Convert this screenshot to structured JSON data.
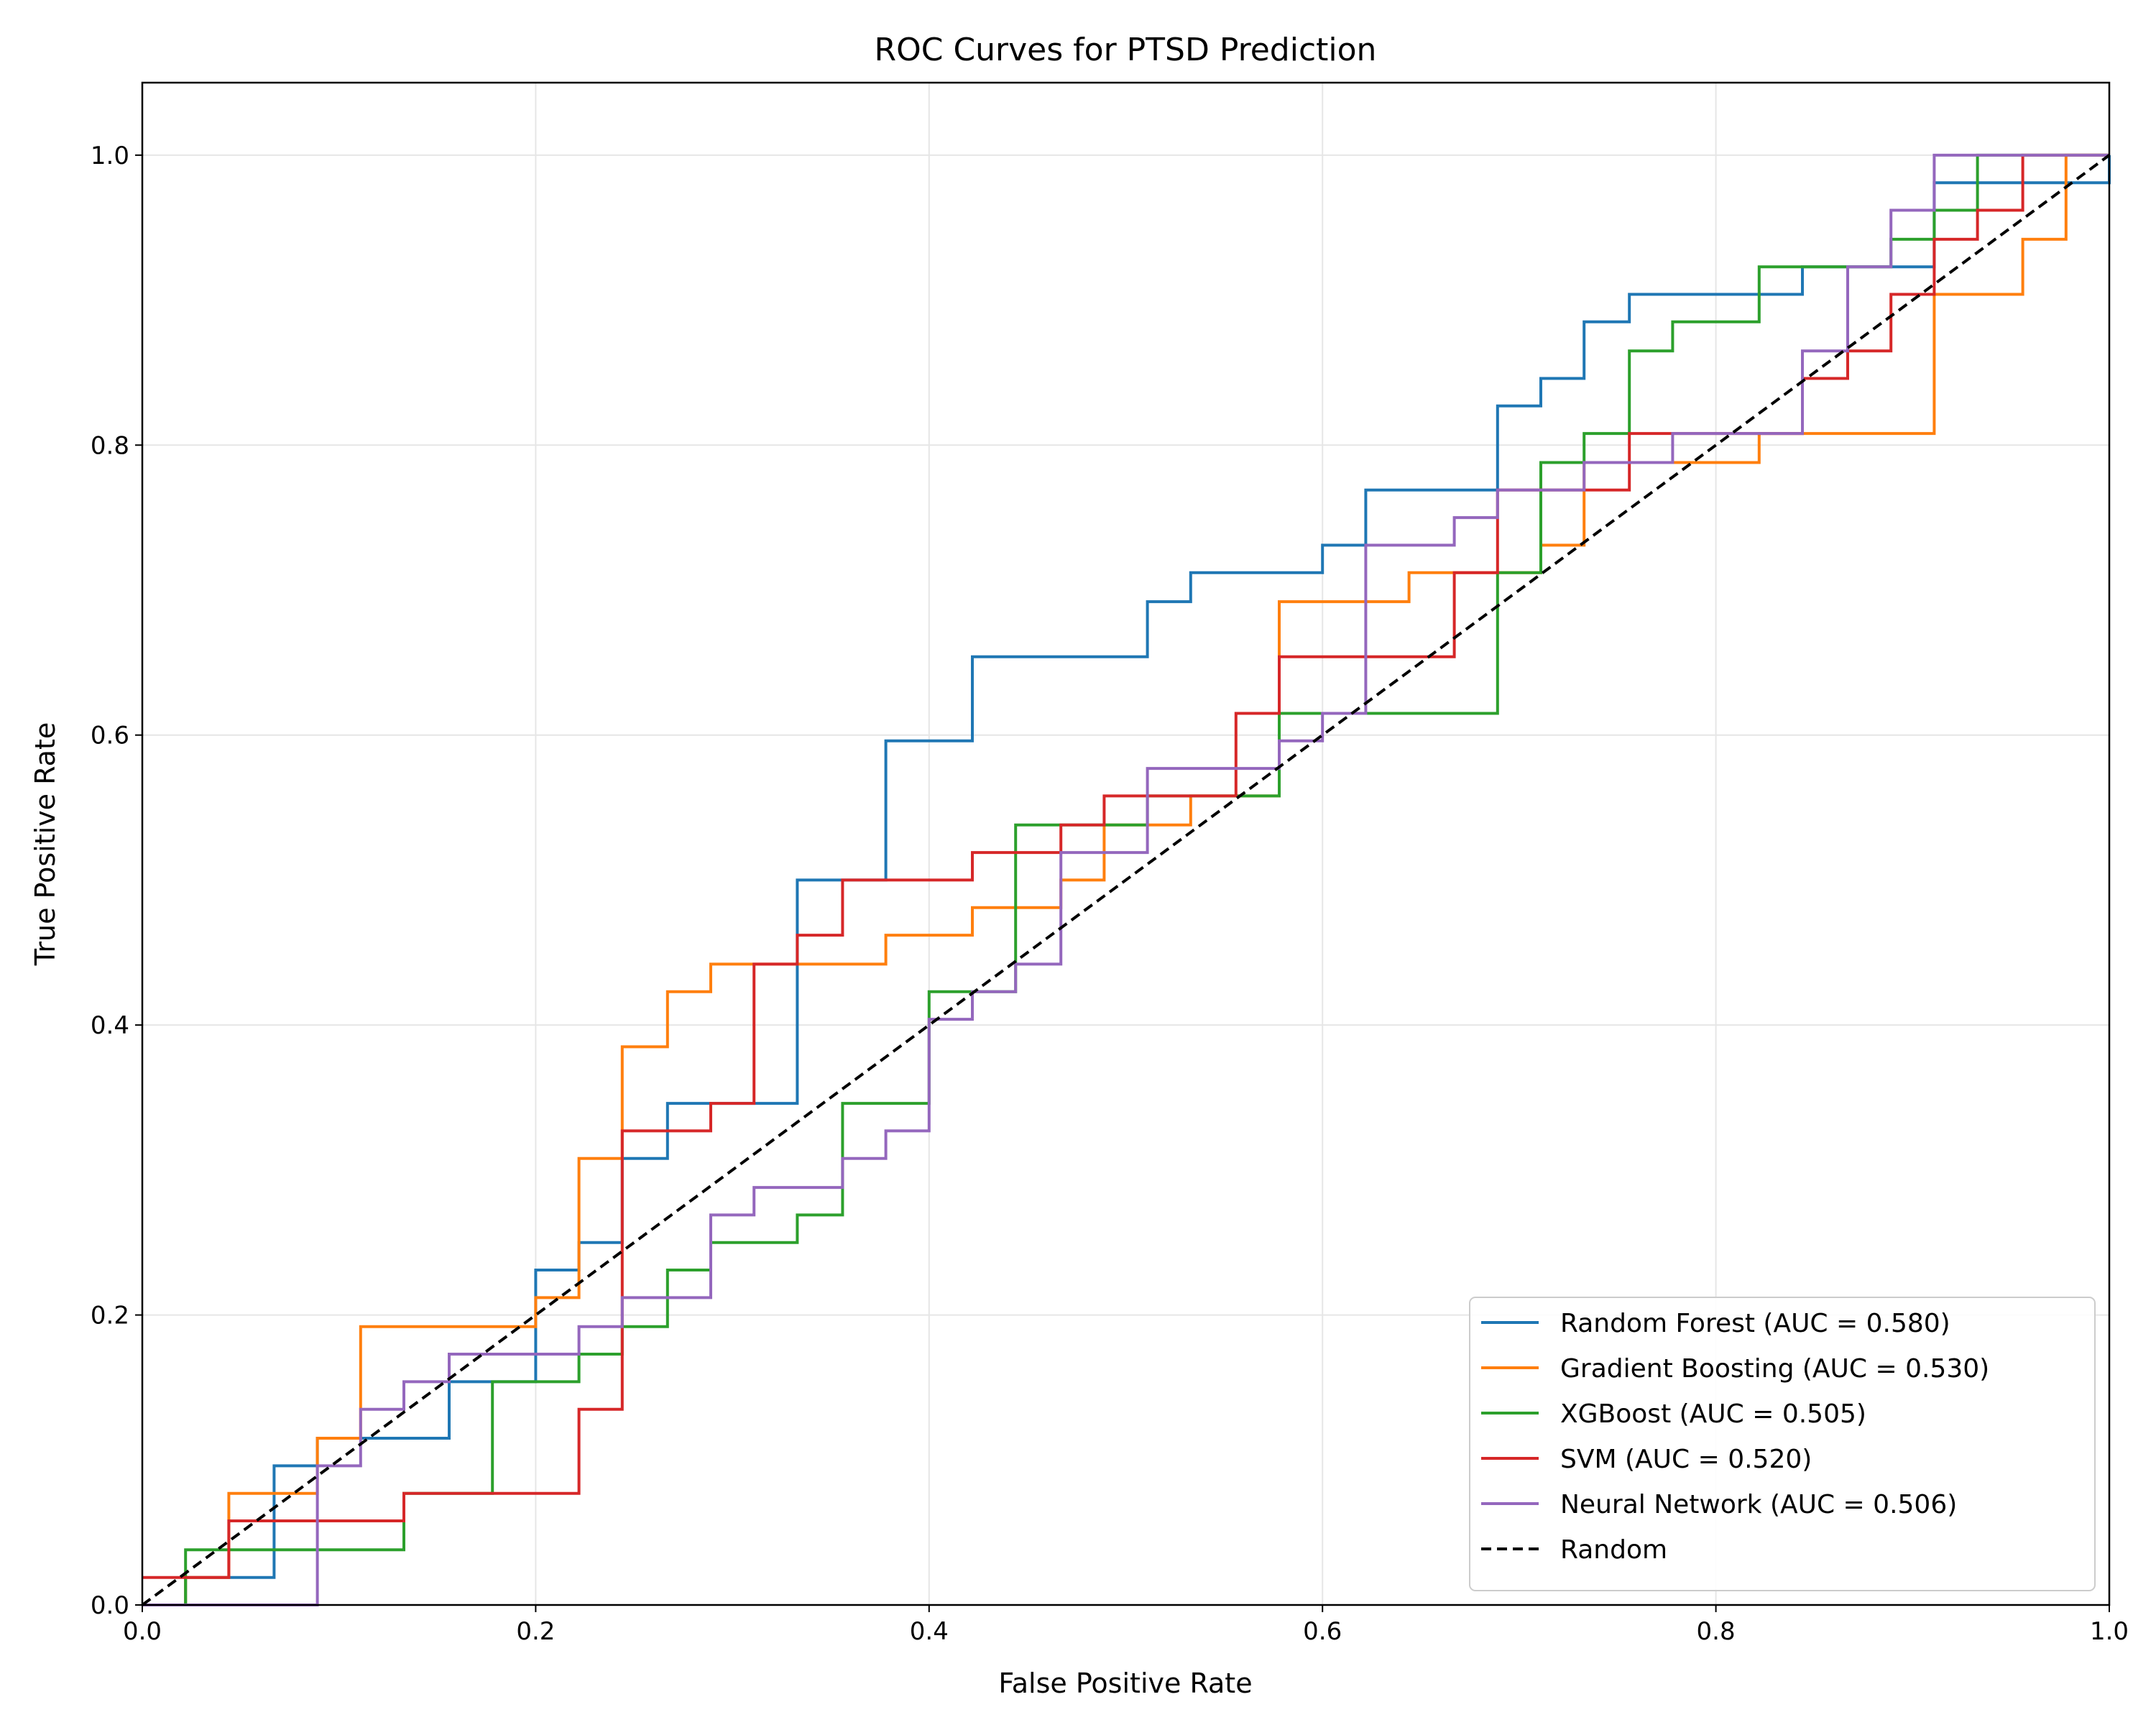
{
  "chart_data": {
    "type": "line",
    "title": "ROC Curves for PTSD Prediction",
    "xlabel": "False Positive Rate",
    "ylabel": "True Positive Rate",
    "xlim": [
      0,
      1
    ],
    "ylim": [
      0,
      1.05
    ],
    "xticks": [
      0.0,
      0.2,
      0.4,
      0.6,
      0.8,
      1.0
    ],
    "yticks": [
      0.0,
      0.2,
      0.4,
      0.6,
      0.8,
      1.0
    ],
    "xtick_labels": [
      "0.0",
      "0.2",
      "0.4",
      "0.6",
      "0.8",
      "1.0"
    ],
    "ytick_labels": [
      "0.0",
      "0.2",
      "0.4",
      "0.6",
      "0.8",
      "1.0"
    ],
    "grid": true,
    "legend_position": "bottom-right",
    "series": [
      {
        "name": "Random Forest (AUC = 0.580)",
        "color": "#1f77b4",
        "style": "solid",
        "x": [
          0,
          0.022,
          0.022,
          0.067,
          0.067,
          0.089,
          0.089,
          0.111,
          0.111,
          0.156,
          0.156,
          0.2,
          0.2,
          0.222,
          0.222,
          0.244,
          0.244,
          0.267,
          0.267,
          0.333,
          0.333,
          0.378,
          0.378,
          0.422,
          0.422,
          0.511,
          0.511,
          0.533,
          0.533,
          0.6,
          0.6,
          0.622,
          0.622,
          0.689,
          0.689,
          0.711,
          0.711,
          0.733,
          0.733,
          0.756,
          0.756,
          0.844,
          0.844,
          0.911,
          0.911,
          1.0,
          1.0
        ],
        "y": [
          0,
          0,
          0.019,
          0.019,
          0.096,
          0.096,
          0.115,
          0.115,
          0.115,
          0.115,
          0.154,
          0.154,
          0.231,
          0.231,
          0.25,
          0.25,
          0.308,
          0.308,
          0.346,
          0.346,
          0.5,
          0.5,
          0.596,
          0.596,
          0.654,
          0.654,
          0.692,
          0.692,
          0.712,
          0.712,
          0.731,
          0.731,
          0.769,
          0.769,
          0.827,
          0.827,
          0.846,
          0.846,
          0.885,
          0.885,
          0.904,
          0.904,
          0.923,
          0.923,
          0.981,
          0.981,
          1.0
        ]
      },
      {
        "name": "Gradient Boosting (AUC = 0.530)",
        "color": "#ff7f0e",
        "style": "solid",
        "x": [
          0,
          0.022,
          0.022,
          0.044,
          0.044,
          0.089,
          0.089,
          0.111,
          0.111,
          0.2,
          0.2,
          0.222,
          0.222,
          0.244,
          0.244,
          0.267,
          0.267,
          0.289,
          0.289,
          0.378,
          0.378,
          0.422,
          0.422,
          0.467,
          0.467,
          0.489,
          0.489,
          0.533,
          0.533,
          0.578,
          0.578,
          0.644,
          0.644,
          0.711,
          0.711,
          0.733,
          0.733,
          0.822,
          0.822,
          0.911,
          0.911,
          0.956,
          0.956,
          0.978,
          0.978,
          1.0
        ],
        "y": [
          0,
          0,
          0.019,
          0.019,
          0.077,
          0.077,
          0.115,
          0.115,
          0.192,
          0.192,
          0.212,
          0.212,
          0.308,
          0.308,
          0.385,
          0.385,
          0.423,
          0.423,
          0.442,
          0.442,
          0.462,
          0.462,
          0.481,
          0.481,
          0.5,
          0.5,
          0.538,
          0.538,
          0.558,
          0.558,
          0.692,
          0.692,
          0.712,
          0.712,
          0.731,
          0.731,
          0.788,
          0.788,
          0.808,
          0.808,
          0.904,
          0.904,
          0.942,
          0.942,
          1.0,
          1.0
        ]
      },
      {
        "name": "XGBoost (AUC = 0.505)",
        "color": "#2ca02c",
        "style": "solid",
        "x": [
          0,
          0.022,
          0.022,
          0.133,
          0.133,
          0.178,
          0.178,
          0.222,
          0.222,
          0.244,
          0.244,
          0.267,
          0.267,
          0.289,
          0.289,
          0.333,
          0.333,
          0.356,
          0.356,
          0.4,
          0.4,
          0.444,
          0.444,
          0.489,
          0.489,
          0.511,
          0.511,
          0.578,
          0.578,
          0.689,
          0.689,
          0.711,
          0.711,
          0.733,
          0.733,
          0.756,
          0.756,
          0.778,
          0.778,
          0.822,
          0.822,
          0.889,
          0.889,
          0.911,
          0.911,
          0.933,
          0.933,
          1.0
        ],
        "y": [
          0,
          0,
          0.038,
          0.038,
          0.077,
          0.077,
          0.154,
          0.154,
          0.173,
          0.173,
          0.192,
          0.192,
          0.231,
          0.231,
          0.25,
          0.25,
          0.269,
          0.269,
          0.346,
          0.346,
          0.423,
          0.423,
          0.538,
          0.538,
          0.538,
          0.538,
          0.558,
          0.558,
          0.615,
          0.615,
          0.712,
          0.712,
          0.788,
          0.788,
          0.808,
          0.808,
          0.865,
          0.865,
          0.885,
          0.885,
          0.923,
          0.923,
          0.942,
          0.942,
          0.962,
          0.962,
          1.0,
          1.0
        ]
      },
      {
        "name": "SVM (AUC = 0.520)",
        "color": "#d62728",
        "style": "solid",
        "x": [
          0,
          0.044,
          0.044,
          0.133,
          0.133,
          0.222,
          0.222,
          0.244,
          0.244,
          0.289,
          0.289,
          0.311,
          0.311,
          0.333,
          0.333,
          0.356,
          0.356,
          0.422,
          0.422,
          0.467,
          0.467,
          0.489,
          0.489,
          0.556,
          0.556,
          0.578,
          0.578,
          0.667,
          0.667,
          0.689,
          0.689,
          0.756,
          0.756,
          0.844,
          0.844,
          0.867,
          0.867,
          0.889,
          0.889,
          0.911,
          0.911,
          0.933,
          0.933,
          0.956,
          0.956,
          1.0
        ],
        "y": [
          0.019,
          0.019,
          0.058,
          0.058,
          0.077,
          0.077,
          0.135,
          0.135,
          0.327,
          0.327,
          0.346,
          0.346,
          0.442,
          0.442,
          0.462,
          0.462,
          0.5,
          0.5,
          0.519,
          0.519,
          0.538,
          0.538,
          0.558,
          0.558,
          0.615,
          0.615,
          0.654,
          0.654,
          0.712,
          0.712,
          0.769,
          0.769,
          0.808,
          0.808,
          0.846,
          0.846,
          0.865,
          0.865,
          0.904,
          0.904,
          0.942,
          0.942,
          0.962,
          0.962,
          1.0,
          1.0
        ]
      },
      {
        "name": "Neural Network (AUC = 0.506)",
        "color": "#9467bd",
        "style": "solid",
        "x": [
          0,
          0.089,
          0.089,
          0.111,
          0.111,
          0.133,
          0.133,
          0.156,
          0.156,
          0.222,
          0.222,
          0.244,
          0.244,
          0.289,
          0.289,
          0.311,
          0.311,
          0.356,
          0.356,
          0.378,
          0.378,
          0.4,
          0.4,
          0.422,
          0.422,
          0.444,
          0.444,
          0.467,
          0.467,
          0.511,
          0.511,
          0.578,
          0.578,
          0.6,
          0.6,
          0.622,
          0.622,
          0.667,
          0.667,
          0.689,
          0.689,
          0.733,
          0.733,
          0.778,
          0.778,
          0.844,
          0.844,
          0.867,
          0.867,
          0.889,
          0.889,
          0.911,
          0.911,
          1.0
        ],
        "y": [
          0,
          0,
          0.096,
          0.096,
          0.135,
          0.135,
          0.154,
          0.154,
          0.173,
          0.173,
          0.192,
          0.192,
          0.212,
          0.212,
          0.269,
          0.269,
          0.288,
          0.288,
          0.308,
          0.308,
          0.327,
          0.327,
          0.404,
          0.404,
          0.423,
          0.423,
          0.442,
          0.442,
          0.519,
          0.519,
          0.577,
          0.577,
          0.596,
          0.596,
          0.615,
          0.615,
          0.731,
          0.731,
          0.75,
          0.75,
          0.769,
          0.769,
          0.788,
          0.788,
          0.808,
          0.808,
          0.865,
          0.865,
          0.923,
          0.923,
          0.962,
          0.962,
          1.0,
          1.0
        ]
      },
      {
        "name": "Random",
        "color": "#000000",
        "style": "dashed",
        "x": [
          0,
          1
        ],
        "y": [
          0,
          1
        ]
      }
    ]
  }
}
